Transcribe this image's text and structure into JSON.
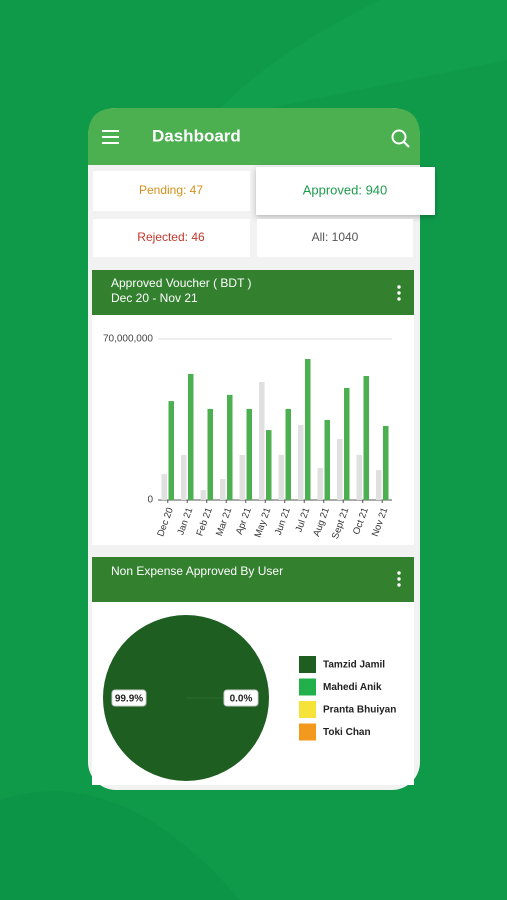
{
  "header": {
    "title": "Dashboard"
  },
  "stats": [
    "Pending: 47",
    "Approved: 940",
    "Rejected: 46",
    "All: 1040"
  ],
  "chart_data": [
    {
      "type": "bar",
      "title": "Approved Voucher ( BDT )",
      "subtitle": "Dec 20 - Nov 21",
      "categories": [
        "Dec 20",
        "Jan 21",
        "Feb 21",
        "Mar 21",
        "Apr 21",
        "May 21",
        "Jun 21",
        "Jul 21",
        "Aug 21",
        "Sept 21",
        "Oct 21",
        "Nov 21"
      ],
      "series": [
        {
          "color": "#e0e0e0",
          "values": [
            11300000,
            19600000,
            4300000,
            9100000,
            19600000,
            51300000,
            19600000,
            32600000,
            13900000,
            26500000,
            19600000,
            13000000
          ]
        },
        {
          "color": "#4caf50",
          "values": [
            43000000,
            54800000,
            39600000,
            45700000,
            39600000,
            30400000,
            39600000,
            61300000,
            34800000,
            48700000,
            53900000,
            32200000
          ]
        }
      ],
      "ylim": [
        0,
        70000000
      ],
      "yticks": [
        0,
        {
          "value": 70000000,
          "label": "70,000,000"
        }
      ],
      "grid": true
    },
    {
      "type": "pie",
      "title": "Non Expense Approved By User",
      "categories": [
        "Tamzid Jamil",
        "Mahedi Anik",
        "Pranta Bhuiyan",
        "Toki Chan"
      ],
      "values": [
        99.9,
        0,
        0,
        0
      ],
      "value_labels": [
        "99.9%",
        "0.0%",
        null,
        null
      ],
      "colors": [
        "#1e5e20",
        "#22b04b",
        "#f5e33a",
        "#f39a1e"
      ],
      "legend": "right"
    }
  ]
}
